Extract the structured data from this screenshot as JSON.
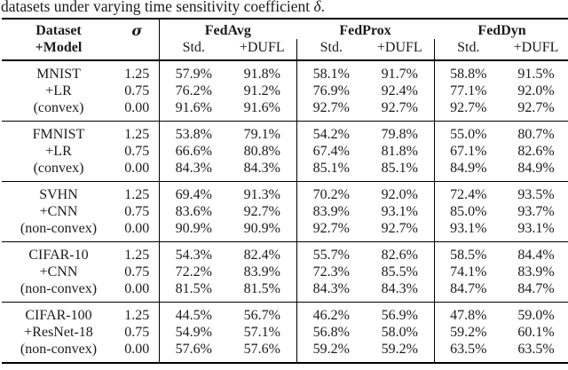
{
  "caption": {
    "prefix": "datasets under varying time sensitivity coefficient ",
    "symbol": "δ",
    "suffix": "."
  },
  "table": {
    "header": {
      "dataset_line1": "Dataset",
      "dataset_line2": "+Model",
      "sigma": "σ",
      "groups": [
        "FedAvg",
        "FedProx",
        "FedDyn"
      ],
      "sub": [
        "Std.",
        "+DUFL"
      ]
    },
    "blocks": [
      {
        "dataset": [
          "MNIST",
          "+LR",
          "(convex)"
        ],
        "rows": [
          {
            "sigma": "1.25",
            "values": [
              "57.9%",
              "91.8%",
              "58.1%",
              "91.7%",
              "58.8%",
              "91.5%"
            ]
          },
          {
            "sigma": "0.75",
            "values": [
              "76.2%",
              "91.2%",
              "76.9%",
              "92.4%",
              "77.1%",
              "92.0%"
            ]
          },
          {
            "sigma": "0.00",
            "values": [
              "91.6%",
              "91.6%",
              "92.7%",
              "92.7%",
              "92.7%",
              "92.7%"
            ]
          }
        ]
      },
      {
        "dataset": [
          "FMNIST",
          "+LR",
          "(convex)"
        ],
        "rows": [
          {
            "sigma": "1.25",
            "values": [
              "53.8%",
              "79.1%",
              "54.2%",
              "79.8%",
              "55.0%",
              "80.7%"
            ]
          },
          {
            "sigma": "0.75",
            "values": [
              "66.6%",
              "80.8%",
              "67.4%",
              "81.8%",
              "67.1%",
              "82.6%"
            ]
          },
          {
            "sigma": "0.00",
            "values": [
              "84.3%",
              "84.3%",
              "85.1%",
              "85.1%",
              "84.9%",
              "84.9%"
            ]
          }
        ]
      },
      {
        "dataset": [
          "SVHN",
          "+CNN",
          "(non-convex)"
        ],
        "rows": [
          {
            "sigma": "1.25",
            "values": [
              "69.4%",
              "91.3%",
              "70.2%",
              "92.0%",
              "72.4%",
              "93.5%"
            ]
          },
          {
            "sigma": "0.75",
            "values": [
              "83.6%",
              "92.7%",
              "83.9%",
              "93.1%",
              "85.0%",
              "93.7%"
            ]
          },
          {
            "sigma": "0.00",
            "values": [
              "90.9%",
              "90.9%",
              "92.7%",
              "92.7%",
              "93.1%",
              "93.1%"
            ]
          }
        ]
      },
      {
        "dataset": [
          "CIFAR-10",
          "+CNN",
          "(non-convex)"
        ],
        "rows": [
          {
            "sigma": "1.25",
            "values": [
              "54.3%",
              "82.4%",
              "55.7%",
              "82.6%",
              "58.5%",
              "84.4%"
            ]
          },
          {
            "sigma": "0.75",
            "values": [
              "72.2%",
              "83.9%",
              "72.3%",
              "85.5%",
              "74.1%",
              "83.9%"
            ]
          },
          {
            "sigma": "0.00",
            "values": [
              "81.5%",
              "81.5%",
              "84.3%",
              "84.3%",
              "84.7%",
              "84.7%"
            ]
          }
        ]
      },
      {
        "dataset": [
          "CIFAR-100",
          "+ResNet-18",
          "(non-convex)"
        ],
        "rows": [
          {
            "sigma": "1.25",
            "values": [
              "44.5%",
              "56.7%",
              "46.2%",
              "56.9%",
              "47.8%",
              "59.0%"
            ]
          },
          {
            "sigma": "0.75",
            "values": [
              "54.9%",
              "57.1%",
              "56.8%",
              "58.0%",
              "59.2%",
              "60.1%"
            ]
          },
          {
            "sigma": "0.00",
            "values": [
              "57.6%",
              "57.6%",
              "59.2%",
              "59.2%",
              "63.5%",
              "63.5%"
            ]
          }
        ]
      }
    ]
  }
}
